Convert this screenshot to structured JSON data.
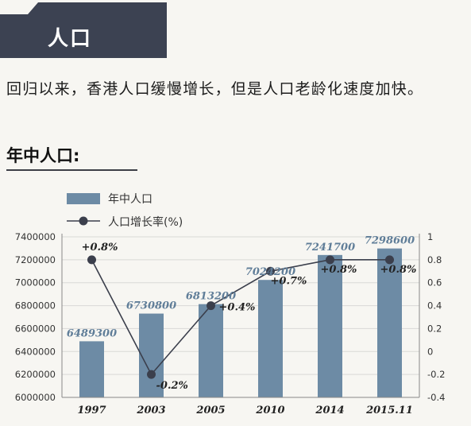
{
  "header": {
    "title": "人口"
  },
  "intro_text": "回归以来，香港人口缓慢增长，但是人口老龄化速度加快。",
  "section_heading": "年中人口:",
  "colors": {
    "bar": "#6d8ba5",
    "line": "#3b3f4c",
    "banner": "#3c4252",
    "label": "#5f7d98"
  },
  "chart_data": {
    "type": "bar",
    "categories": [
      "1997",
      "2003",
      "2005",
      "2010",
      "2014",
      "2015.11"
    ],
    "series": [
      {
        "name": "年中人口",
        "type": "bar",
        "axis": "left",
        "values": [
          6489300,
          6730800,
          6813200,
          7024200,
          7241700,
          7298600
        ],
        "labels": [
          "6489300",
          "6730800",
          "6813200",
          "7024200",
          "7241700",
          "7298600"
        ]
      },
      {
        "name": "人口增长率(%)",
        "type": "line",
        "axis": "right",
        "values": [
          0.8,
          -0.2,
          0.4,
          0.7,
          0.8,
          0.8
        ],
        "labels": [
          "+0.8%",
          "-0.2%",
          "+0.4%",
          "+0.7%",
          "+0.8%",
          "+0.8%"
        ]
      }
    ],
    "y_left": {
      "ylim": [
        6000000,
        7400000
      ],
      "ticks": [
        "6000000",
        "6200000",
        "6400000",
        "6600000",
        "6800000",
        "7000000",
        "7200000",
        "7400000"
      ]
    },
    "y_right": {
      "ylim": [
        -0.4,
        1
      ],
      "ticks": [
        "-0.4",
        "-0.2",
        "0",
        "0.2",
        "0.4",
        "0.6",
        "0.8",
        "1"
      ]
    },
    "grid": true,
    "legend": "top-left"
  }
}
